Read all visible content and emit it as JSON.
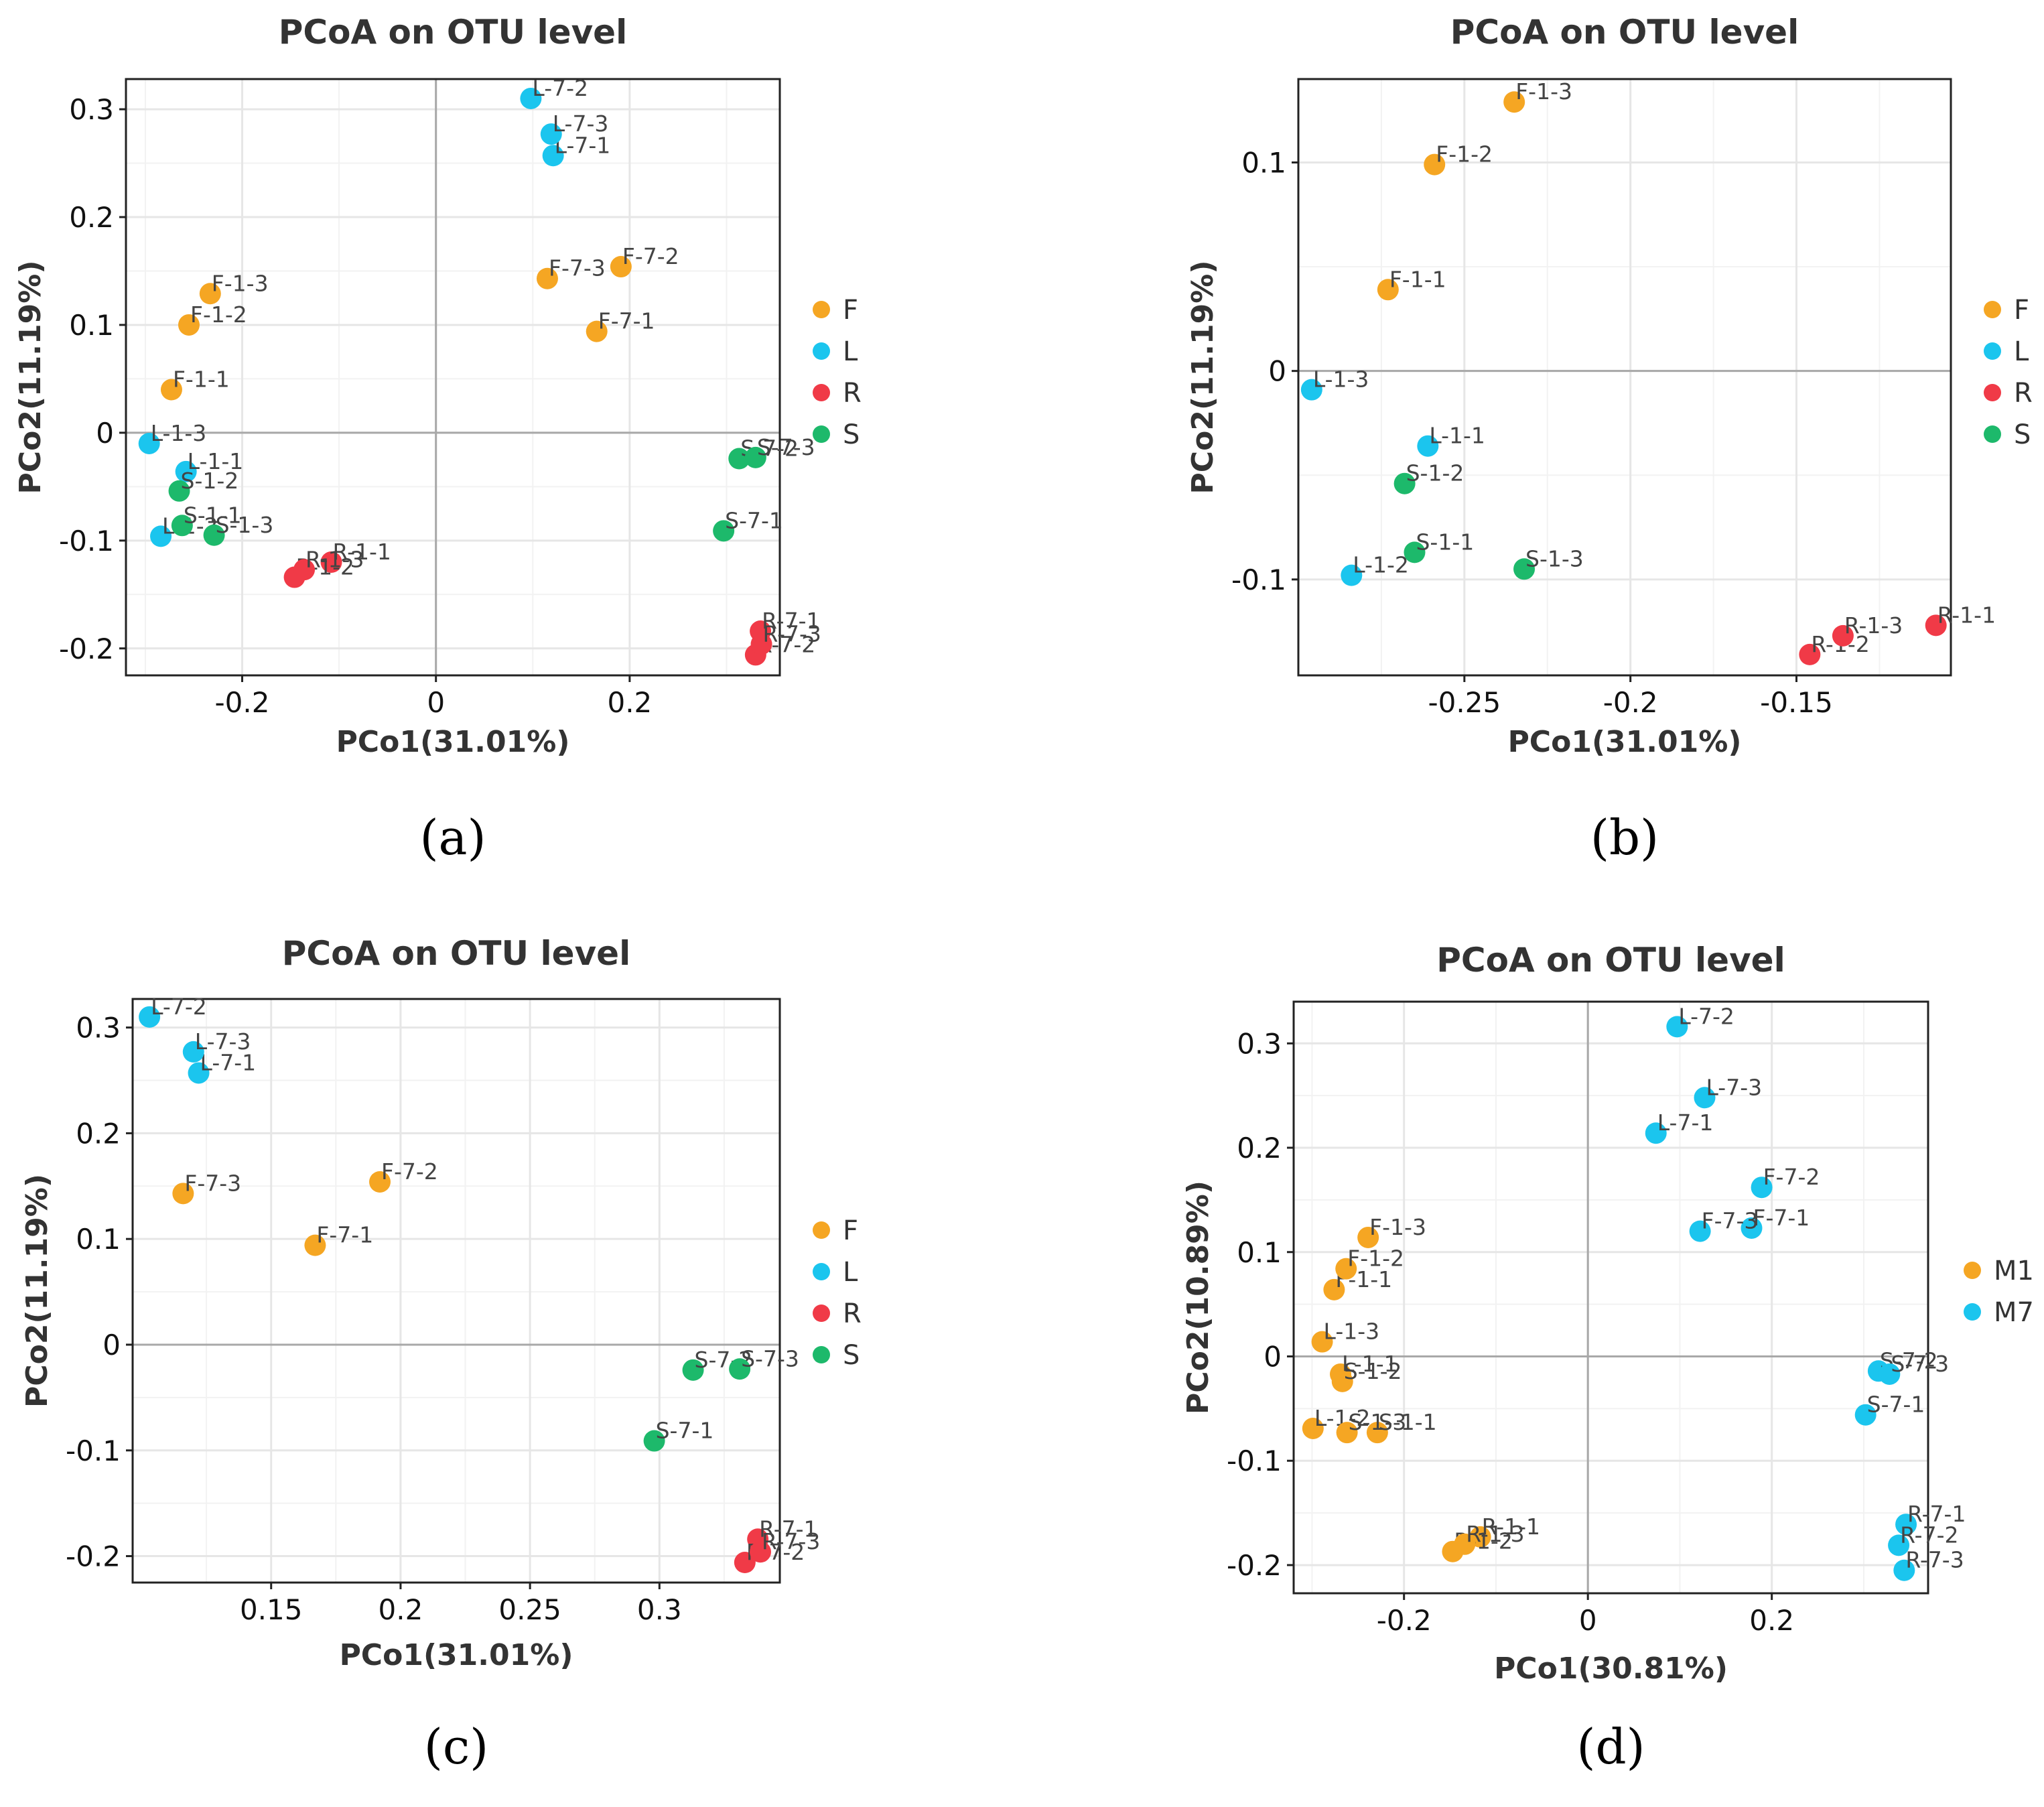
{
  "chart_data": [
    {
      "type": "scatter",
      "panel_label": "(a)",
      "title": "PCoA on OTU level",
      "xlabel": "PCo1(31.01%)",
      "ylabel": "PCo2(11.19%)",
      "xlim": [
        -0.32,
        0.355
      ],
      "ylim": [
        -0.225,
        0.328
      ],
      "xticks": [
        {
          "v": -0.2,
          "t": "-0.2"
        },
        {
          "v": 0,
          "t": "0"
        },
        {
          "v": 0.2,
          "t": "0.2"
        }
      ],
      "yticks": [
        {
          "v": -0.2,
          "t": "-0.2"
        },
        {
          "v": -0.1,
          "t": "-0.1"
        },
        {
          "v": 0,
          "t": "0"
        },
        {
          "v": 0.1,
          "t": "0.1"
        },
        {
          "v": 0.2,
          "t": "0.2"
        },
        {
          "v": 0.3,
          "t": "0.3"
        }
      ],
      "zero_lines": true,
      "legend": [
        {
          "label": "F",
          "color": "#F5A623"
        },
        {
          "label": "L",
          "color": "#1BC5EE"
        },
        {
          "label": "R",
          "color": "#F03A47"
        },
        {
          "label": "S",
          "color": "#1DB96B"
        }
      ],
      "points": [
        {
          "label": "F-1-1",
          "x": -0.273,
          "y": 0.04,
          "group": "F"
        },
        {
          "label": "F-1-2",
          "x": -0.255,
          "y": 0.1,
          "group": "F"
        },
        {
          "label": "F-1-3",
          "x": -0.233,
          "y": 0.129,
          "group": "F"
        },
        {
          "label": "F-7-1",
          "x": 0.166,
          "y": 0.094,
          "group": "F"
        },
        {
          "label": "F-7-2",
          "x": 0.191,
          "y": 0.154,
          "group": "F"
        },
        {
          "label": "F-7-3",
          "x": 0.115,
          "y": 0.143,
          "group": "F"
        },
        {
          "label": "L-1-1",
          "x": -0.258,
          "y": -0.036,
          "group": "L"
        },
        {
          "label": "L-1-2",
          "x": -0.284,
          "y": -0.096,
          "group": "L"
        },
        {
          "label": "L-1-3",
          "x": -0.296,
          "y": -0.01,
          "group": "L"
        },
        {
          "label": "L-7-1",
          "x": 0.121,
          "y": 0.257,
          "group": "L"
        },
        {
          "label": "L-7-2",
          "x": 0.098,
          "y": 0.31,
          "group": "L"
        },
        {
          "label": "L-7-3",
          "x": 0.119,
          "y": 0.277,
          "group": "L"
        },
        {
          "label": "R-1-1",
          "x": -0.108,
          "y": -0.12,
          "group": "R"
        },
        {
          "label": "R-1-2",
          "x": -0.146,
          "y": -0.134,
          "group": "R"
        },
        {
          "label": "R-1-3",
          "x": -0.136,
          "y": -0.127,
          "group": "R"
        },
        {
          "label": "R-7-1",
          "x": 0.335,
          "y": -0.184,
          "group": "R"
        },
        {
          "label": "R-7-2",
          "x": 0.33,
          "y": -0.206,
          "group": "R"
        },
        {
          "label": "R-7-3",
          "x": 0.336,
          "y": -0.196,
          "group": "R"
        },
        {
          "label": "S-1-1",
          "x": -0.262,
          "y": -0.086,
          "group": "S"
        },
        {
          "label": "S-1-2",
          "x": -0.265,
          "y": -0.054,
          "group": "S"
        },
        {
          "label": "S-1-3",
          "x": -0.229,
          "y": -0.095,
          "group": "S"
        },
        {
          "label": "S-7-1",
          "x": 0.297,
          "y": -0.091,
          "group": "S"
        },
        {
          "label": "S-7-2",
          "x": 0.313,
          "y": -0.024,
          "group": "S"
        },
        {
          "label": "S-7-3",
          "x": 0.33,
          "y": -0.023,
          "group": "S"
        }
      ]
    },
    {
      "type": "scatter",
      "panel_label": "(b)",
      "title": "PCoA on OTU level",
      "xlabel": "PCo1(31.01%)",
      "ylabel": "PCo2(11.19%)",
      "xlim": [
        -0.3,
        -0.1035
      ],
      "ylim": [
        -0.146,
        0.14
      ],
      "xticks": [
        {
          "v": -0.25,
          "t": "-0.25"
        },
        {
          "v": -0.2,
          "t": "-0.2"
        },
        {
          "v": -0.15,
          "t": "-0.15"
        }
      ],
      "yticks": [
        {
          "v": -0.1,
          "t": "-0.1"
        },
        {
          "v": 0,
          "t": "0"
        },
        {
          "v": 0.1,
          "t": "0.1"
        }
      ],
      "zero_lines": true,
      "legend": [
        {
          "label": "F",
          "color": "#F5A623"
        },
        {
          "label": "L",
          "color": "#1BC5EE"
        },
        {
          "label": "R",
          "color": "#F03A47"
        },
        {
          "label": "S",
          "color": "#1DB96B"
        }
      ],
      "points": [
        {
          "label": "F-1-1",
          "x": -0.273,
          "y": 0.039,
          "group": "F"
        },
        {
          "label": "F-1-2",
          "x": -0.259,
          "y": 0.099,
          "group": "F"
        },
        {
          "label": "F-1-3",
          "x": -0.235,
          "y": 0.129,
          "group": "F"
        },
        {
          "label": "L-1-1",
          "x": -0.261,
          "y": -0.036,
          "group": "L"
        },
        {
          "label": "L-1-2",
          "x": -0.284,
          "y": -0.098,
          "group": "L"
        },
        {
          "label": "L-1-3",
          "x": -0.296,
          "y": -0.009,
          "group": "L"
        },
        {
          "label": "R-1-1",
          "x": -0.108,
          "y": -0.122,
          "group": "R"
        },
        {
          "label": "R-1-2",
          "x": -0.146,
          "y": -0.136,
          "group": "R"
        },
        {
          "label": "R-1-3",
          "x": -0.136,
          "y": -0.127,
          "group": "R"
        },
        {
          "label": "S-1-1",
          "x": -0.265,
          "y": -0.087,
          "group": "S"
        },
        {
          "label": "S-1-2",
          "x": -0.268,
          "y": -0.054,
          "group": "S"
        },
        {
          "label": "S-1-3",
          "x": -0.232,
          "y": -0.095,
          "group": "S"
        }
      ]
    },
    {
      "type": "scatter",
      "panel_label": "(c)",
      "title": "PCoA on OTU level",
      "xlabel": "PCo1(31.01%)",
      "ylabel": "PCo2(11.19%)",
      "xlim": [
        0.0965,
        0.3465
      ],
      "ylim": [
        -0.225,
        0.327
      ],
      "xticks": [
        {
          "v": 0.15,
          "t": "0.15"
        },
        {
          "v": 0.2,
          "t": "0.2"
        },
        {
          "v": 0.25,
          "t": "0.25"
        },
        {
          "v": 0.3,
          "t": "0.3"
        }
      ],
      "yticks": [
        {
          "v": -0.2,
          "t": "-0.2"
        },
        {
          "v": -0.1,
          "t": "-0.1"
        },
        {
          "v": 0,
          "t": "0"
        },
        {
          "v": 0.1,
          "t": "0.1"
        },
        {
          "v": 0.2,
          "t": "0.2"
        },
        {
          "v": 0.3,
          "t": "0.3"
        }
      ],
      "zero_lines": true,
      "legend": [
        {
          "label": "F",
          "color": "#F5A623"
        },
        {
          "label": "L",
          "color": "#1BC5EE"
        },
        {
          "label": "R",
          "color": "#F03A47"
        },
        {
          "label": "S",
          "color": "#1DB96B"
        }
      ],
      "points": [
        {
          "label": "F-7-1",
          "x": 0.167,
          "y": 0.094,
          "group": "F"
        },
        {
          "label": "F-7-2",
          "x": 0.192,
          "y": 0.154,
          "group": "F"
        },
        {
          "label": "F-7-3",
          "x": 0.116,
          "y": 0.143,
          "group": "F"
        },
        {
          "label": "L-7-1",
          "x": 0.122,
          "y": 0.257,
          "group": "L"
        },
        {
          "label": "L-7-2",
          "x": 0.103,
          "y": 0.31,
          "group": "L"
        },
        {
          "label": "L-7-3",
          "x": 0.12,
          "y": 0.277,
          "group": "L"
        },
        {
          "label": "R-7-1",
          "x": 0.338,
          "y": -0.184,
          "group": "R"
        },
        {
          "label": "R-7-2",
          "x": 0.333,
          "y": -0.206,
          "group": "R"
        },
        {
          "label": "R-7-3",
          "x": 0.339,
          "y": -0.196,
          "group": "R"
        },
        {
          "label": "S-7-1",
          "x": 0.298,
          "y": -0.091,
          "group": "S"
        },
        {
          "label": "S-7-2",
          "x": 0.313,
          "y": -0.024,
          "group": "S"
        },
        {
          "label": "S-7-3",
          "x": 0.331,
          "y": -0.023,
          "group": "S"
        }
      ]
    },
    {
      "type": "scatter",
      "panel_label": "(d)",
      "title": "PCoA on OTU level",
      "xlabel": "PCo1(30.81%)",
      "ylabel": "PCo2(10.89%)",
      "xlim": [
        -0.32,
        0.37
      ],
      "ylim": [
        -0.227,
        0.34
      ],
      "xticks": [
        {
          "v": -0.2,
          "t": "-0.2"
        },
        {
          "v": 0,
          "t": "0"
        },
        {
          "v": 0.2,
          "t": "0.2"
        }
      ],
      "yticks": [
        {
          "v": -0.2,
          "t": "-0.2"
        },
        {
          "v": -0.1,
          "t": "-0.1"
        },
        {
          "v": 0,
          "t": "0"
        },
        {
          "v": 0.1,
          "t": "0.1"
        },
        {
          "v": 0.2,
          "t": "0.2"
        },
        {
          "v": 0.3,
          "t": "0.3"
        }
      ],
      "zero_lines": true,
      "legend": [
        {
          "label": "M1",
          "color": "#F5A623"
        },
        {
          "label": "M7",
          "color": "#1BC5EE"
        }
      ],
      "points": [
        {
          "label": "F-1-1",
          "x": -0.276,
          "y": 0.064,
          "group": "M1"
        },
        {
          "label": "F-1-2",
          "x": -0.263,
          "y": 0.084,
          "group": "M1"
        },
        {
          "label": "F-1-3",
          "x": -0.239,
          "y": 0.114,
          "group": "M1"
        },
        {
          "label": "L-1-1",
          "x": -0.269,
          "y": -0.017,
          "group": "M1"
        },
        {
          "label": "L-1-2",
          "x": -0.299,
          "y": -0.069,
          "group": "M1"
        },
        {
          "label": "L-1-3",
          "x": -0.289,
          "y": 0.014,
          "group": "M1"
        },
        {
          "label": "S-1-1",
          "x": -0.229,
          "y": -0.073,
          "group": "M1"
        },
        {
          "label": "S-1-2",
          "x": -0.267,
          "y": -0.024,
          "group": "M1"
        },
        {
          "label": "S-1-3",
          "x": -0.262,
          "y": -0.073,
          "group": "M1"
        },
        {
          "label": "R-1-1",
          "x": -0.117,
          "y": -0.173,
          "group": "M1"
        },
        {
          "label": "R-1-2",
          "x": -0.147,
          "y": -0.187,
          "group": "M1"
        },
        {
          "label": "R-1-3",
          "x": -0.134,
          "y": -0.18,
          "group": "M1"
        },
        {
          "label": "L-7-1",
          "x": 0.074,
          "y": 0.214,
          "group": "M7"
        },
        {
          "label": "L-7-2",
          "x": 0.097,
          "y": 0.316,
          "group": "M7"
        },
        {
          "label": "L-7-3",
          "x": 0.127,
          "y": 0.248,
          "group": "M7"
        },
        {
          "label": "F-7-1",
          "x": 0.178,
          "y": 0.123,
          "group": "M7"
        },
        {
          "label": "F-7-2",
          "x": 0.189,
          "y": 0.162,
          "group": "M7"
        },
        {
          "label": "F-7-3",
          "x": 0.122,
          "y": 0.12,
          "group": "M7"
        },
        {
          "label": "S-7-1",
          "x": 0.302,
          "y": -0.056,
          "group": "M7"
        },
        {
          "label": "S-7-2",
          "x": 0.316,
          "y": -0.014,
          "group": "M7"
        },
        {
          "label": "S-7-3",
          "x": 0.328,
          "y": -0.017,
          "group": "M7"
        },
        {
          "label": "R-7-1",
          "x": 0.346,
          "y": -0.161,
          "group": "M7"
        },
        {
          "label": "R-7-2",
          "x": 0.338,
          "y": -0.181,
          "group": "M7"
        },
        {
          "label": "R-7-3",
          "x": 0.344,
          "y": -0.205,
          "group": "M7"
        }
      ]
    }
  ]
}
